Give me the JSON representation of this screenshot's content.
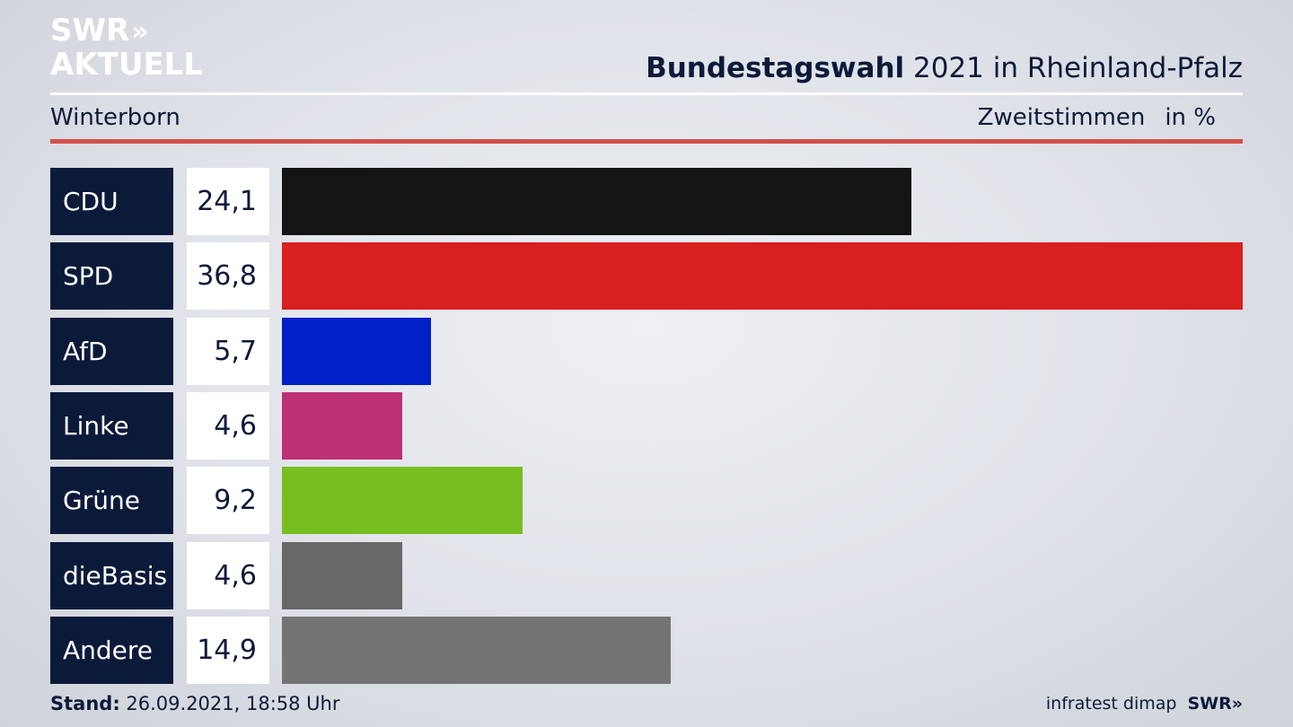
{
  "logo": {
    "line1": "SWR",
    "arrows": "»",
    "line2": "AKTUELL"
  },
  "header": {
    "title_bold": "Bundestagswahl",
    "title_rest": " 2021 in Rheinland-Pfalz",
    "place": "Winterborn",
    "measure": "Zweitstimmen",
    "unit": "in %"
  },
  "footer": {
    "stand_label": "Stand:",
    "stand_value": " 26.09.2021, 18:58 Uhr",
    "source": "infratest dimap",
    "brand": "SWR»"
  },
  "chart_data": {
    "type": "bar",
    "orientation": "horizontal",
    "categories": [
      "CDU",
      "SPD",
      "AfD",
      "Linke",
      "Grüne",
      "dieBasis",
      "Andere"
    ],
    "values": [
      24.1,
      36.8,
      5.7,
      4.6,
      9.2,
      4.6,
      14.9
    ],
    "value_labels": [
      "24,1",
      "36,8",
      "5,7",
      "4,6",
      "9,2",
      "4,6",
      "14,9"
    ],
    "colors": [
      "#141414",
      "#d82020",
      "#0020c8",
      "#be3075",
      "#78be1e",
      "#686868",
      "#747474"
    ],
    "xlim": [
      0,
      36.8
    ],
    "grid": false
  }
}
